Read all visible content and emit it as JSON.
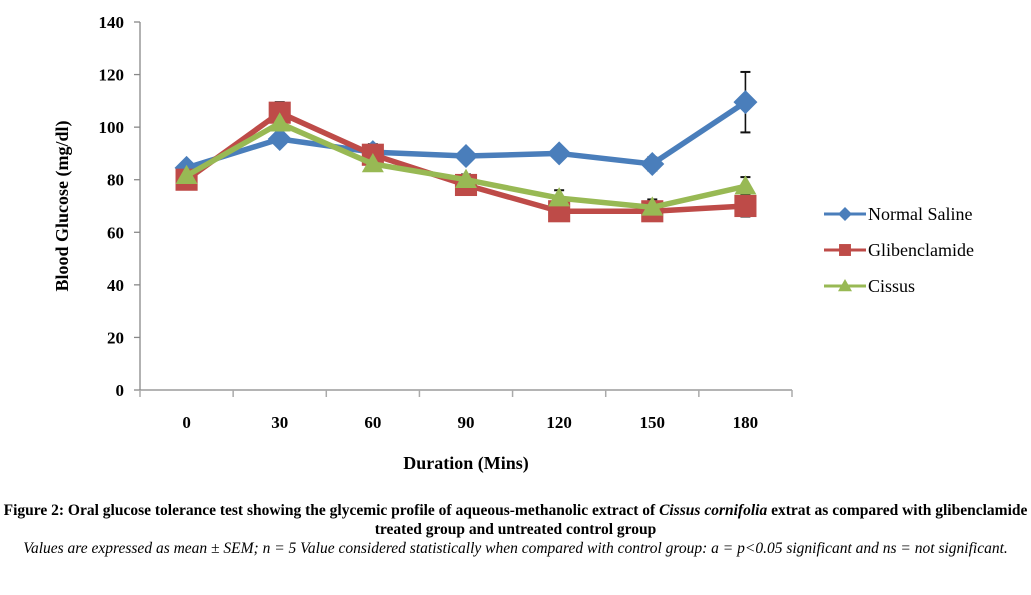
{
  "chart_data": {
    "type": "line",
    "title": "",
    "xlabel": "Duration (Mins)",
    "ylabel": "Blood Glucose (mg/dl)",
    "categories": [
      "0",
      "30",
      "60",
      "90",
      "120",
      "150",
      "180"
    ],
    "ylim": [
      0,
      140
    ],
    "yticks": [
      0,
      20,
      40,
      60,
      80,
      100,
      120,
      140
    ],
    "grid": false,
    "legend_position": "right",
    "series": [
      {
        "name": "Normal Saline",
        "color": "#4a7ebb",
        "marker": "diamond",
        "values": [
          84.5,
          95.5,
          90.5,
          89,
          90,
          86,
          109.5
        ],
        "errors": [
          0,
          1,
          0,
          0,
          0.5,
          2.5,
          11.5
        ]
      },
      {
        "name": "Glibenclamide",
        "color": "#be4b48",
        "marker": "square",
        "values": [
          80,
          105.5,
          89.5,
          78,
          68,
          68,
          70
        ],
        "errors": [
          0,
          4,
          4,
          1,
          0,
          0,
          4
        ]
      },
      {
        "name": "Cissus",
        "color": "#98b954",
        "marker": "triangle",
        "values": [
          81.5,
          101.5,
          86,
          80,
          73,
          69.5,
          77.5
        ],
        "errors": [
          0,
          0,
          0,
          2,
          3,
          3,
          3.5
        ]
      }
    ]
  },
  "caption": {
    "title_part1": "Figure 2: Oral glucose tolerance test showing the glycemic profile of aqueous-methanolic extract of ",
    "title_italic": "Cissus cornifolia",
    "title_part2": " extrat as compared with glibenclamide treated group and untreated control group",
    "note": "Values are expressed as mean ± SEM; n = 5 Value considered statistically when compared with control group:  a = p<0.05 significant and ns = not significant."
  }
}
